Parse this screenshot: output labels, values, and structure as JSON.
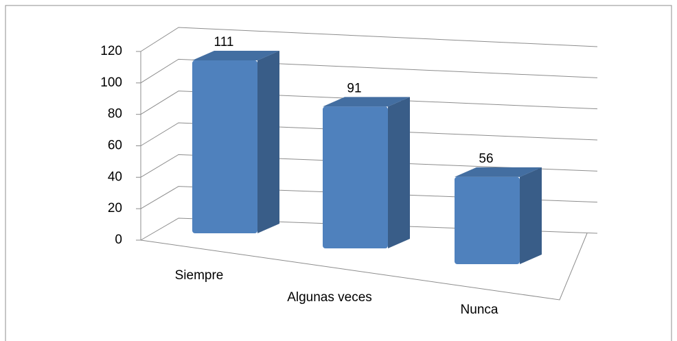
{
  "chart_data": {
    "type": "bar3d",
    "categories": [
      "Siempre",
      "Algunas veces",
      "Nunca"
    ],
    "values": [
      111,
      91,
      56
    ],
    "color": "#4f81bd",
    "ylim": [
      0,
      120
    ],
    "yticks": [
      0,
      20,
      40,
      60,
      80,
      100,
      120
    ],
    "grid": true
  }
}
